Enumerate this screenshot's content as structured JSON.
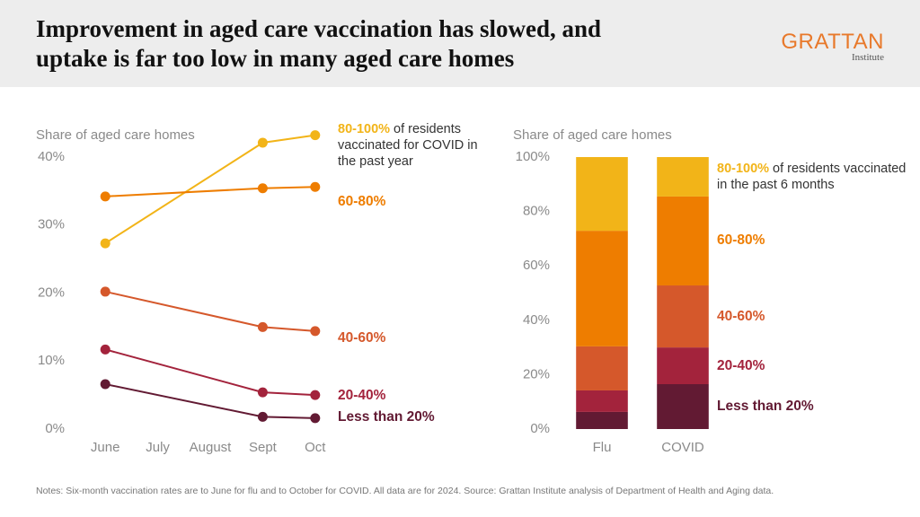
{
  "title": "Improvement in aged care vaccination has slowed, and uptake is far too low in many aged care homes",
  "logo": "GRATTAN",
  "logo_subtitle": "Institute",
  "notes": "Notes: Six-month vaccination rates are to June for flu and to October for COVID. All data are for 2024. Source: Grattan Institute analysis of Department of Health and Aging data.",
  "chart_data": [
    {
      "type": "line",
      "axis_label": "Share of aged care homes",
      "annotation": "of residents vaccinated for COVID in the past year",
      "categories": [
        "June",
        "July",
        "August",
        "Sept",
        "Oct"
      ],
      "ylim": [
        0,
        45
      ],
      "yticks": [
        {
          "value": 0,
          "label": "0%"
        },
        {
          "value": 10,
          "label": "10%"
        },
        {
          "value": 20,
          "label": "20%"
        },
        {
          "value": 30,
          "label": "30%"
        },
        {
          "value": 40,
          "label": "40%"
        }
      ],
      "series": [
        {
          "name": "80-100%",
          "color": "#f2b418",
          "values": [
            27.3,
            null,
            null,
            42.1,
            43.2
          ]
        },
        {
          "name": "60-80%",
          "color": "#ee7d00",
          "values": [
            34.2,
            null,
            null,
            35.4,
            35.6
          ]
        },
        {
          "name": "40-60%",
          "color": "#d5582b",
          "values": [
            20.2,
            null,
            null,
            15.0,
            14.4
          ]
        },
        {
          "name": "20-40%",
          "color": "#a3233c",
          "values": [
            11.7,
            null,
            null,
            5.4,
            5.0
          ]
        },
        {
          "name": "Less than 20%",
          "color": "#621a33",
          "values": [
            6.6,
            null,
            null,
            1.8,
            1.6
          ]
        }
      ]
    },
    {
      "type": "stacked_bar",
      "axis_label": "Share of aged care homes",
      "annotation": "of residents vaccinated in the past 6 months",
      "categories": [
        "Flu",
        "COVID"
      ],
      "ylim": [
        0,
        100
      ],
      "yticks": [
        {
          "value": 0,
          "label": "0%"
        },
        {
          "value": 20,
          "label": "20%"
        },
        {
          "value": 40,
          "label": "40%"
        },
        {
          "value": 60,
          "label": "60%"
        },
        {
          "value": 80,
          "label": "80%"
        },
        {
          "value": 100,
          "label": "100%"
        }
      ],
      "series": [
        {
          "name": "80-100%",
          "color": "#f2b418",
          "values": [
            27.1,
            14.5
          ]
        },
        {
          "name": "60-80%",
          "color": "#ee7d00",
          "values": [
            42.5,
            32.7
          ]
        },
        {
          "name": "40-60%",
          "color": "#d5582b",
          "values": [
            16.2,
            22.8
          ]
        },
        {
          "name": "20-40%",
          "color": "#a3233c",
          "values": [
            7.9,
            13.5
          ]
        },
        {
          "name": "Less than 20%",
          "color": "#621a33",
          "values": [
            6.3,
            16.5
          ]
        }
      ]
    }
  ]
}
